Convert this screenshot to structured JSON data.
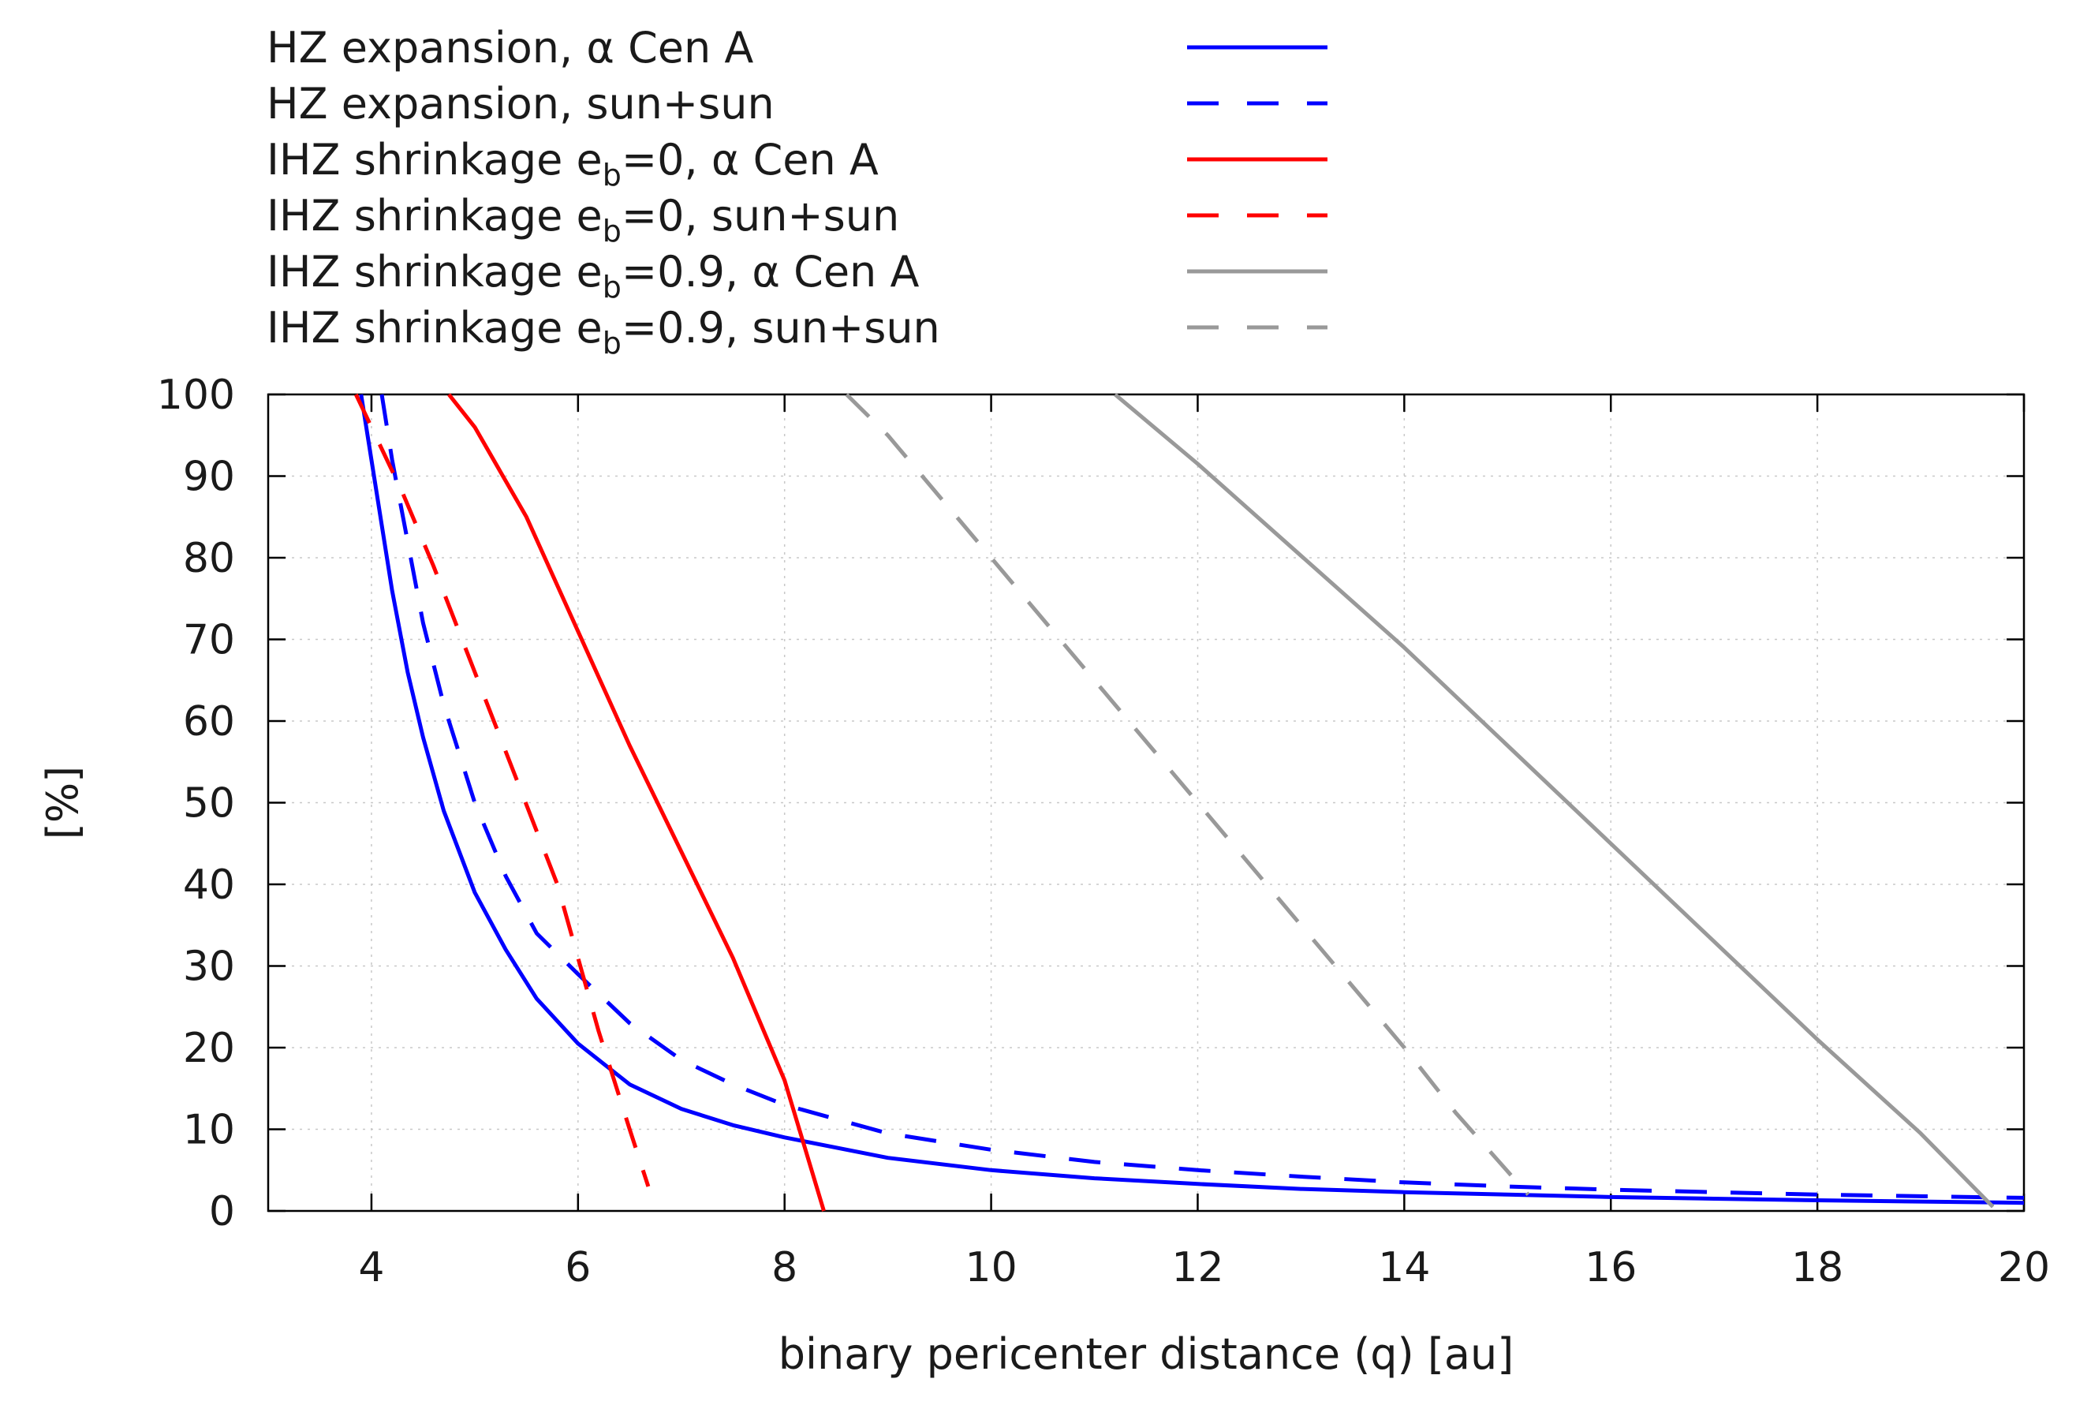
{
  "chart_data": {
    "type": "line",
    "title": "",
    "xlabel": "binary pericenter distance (q) [au]",
    "ylabel": "[%]",
    "xlim": [
      3,
      20
    ],
    "ylim": [
      0,
      100
    ],
    "xticks": [
      4,
      6,
      8,
      10,
      12,
      14,
      16,
      18,
      20
    ],
    "yticks": [
      0,
      10,
      20,
      30,
      40,
      50,
      60,
      70,
      80,
      90,
      100
    ],
    "grid": true,
    "legend_position": "top-left, above plot area",
    "series": [
      {
        "name": "HZ expansion, α Cen A",
        "legend_parts": [
          "HZ expansion, α Cen A"
        ],
        "color": "#0000ff",
        "dash": "solid",
        "x": [
          3.9,
          4.0,
          4.1,
          4.2,
          4.35,
          4.5,
          4.7,
          5.0,
          5.3,
          5.6,
          6.0,
          6.5,
          7.0,
          7.5,
          8.0,
          9.0,
          10.0,
          11.0,
          12.0,
          13.0,
          14.0,
          15.0,
          16.0,
          17.0,
          18.0,
          19.0,
          20.0
        ],
        "y": [
          100,
          92,
          84,
          76,
          66,
          58,
          49,
          39,
          32,
          26,
          20.5,
          15.5,
          12.5,
          10.5,
          9,
          6.5,
          5,
          4,
          3.3,
          2.7,
          2.3,
          2.0,
          1.7,
          1.5,
          1.3,
          1.15,
          1.0
        ]
      },
      {
        "name": "HZ expansion, sun+sun",
        "legend_parts": [
          "HZ expansion, sun+sun"
        ],
        "color": "#0000ff",
        "dash": "dashed",
        "x": [
          4.1,
          4.2,
          4.35,
          4.5,
          4.7,
          5.0,
          5.3,
          5.6,
          6.0,
          6.5,
          7.0,
          7.5,
          8.0,
          9.0,
          10.0,
          11.0,
          12.0,
          13.0,
          14.0,
          15.0,
          16.0,
          17.0,
          18.0,
          19.0,
          20.0
        ],
        "y": [
          100,
          92,
          82,
          72,
          62,
          50,
          41,
          34,
          29,
          23,
          18.5,
          15.5,
          13,
          9.5,
          7.5,
          6,
          5,
          4.2,
          3.5,
          3.0,
          2.6,
          2.3,
          2.0,
          1.8,
          1.6
        ]
      },
      {
        "name": "IHZ shrinkage e_b=0, α Cen A",
        "legend_parts": [
          "IHZ shrinkage e",
          "b",
          "=0, α Cen A"
        ],
        "color": "#ff0000",
        "dash": "solid",
        "x": [
          4.75,
          5.0,
          5.5,
          6.0,
          6.5,
          7.0,
          7.5,
          8.0,
          8.38
        ],
        "y": [
          100,
          96,
          85,
          71,
          57,
          44,
          31,
          16,
          0
        ]
      },
      {
        "name": "IHZ shrinkage e_b=0, sun+sun",
        "legend_parts": [
          "IHZ shrinkage e",
          "b",
          "=0, sun+sun"
        ],
        "color": "#ff0000",
        "dash": "dashed",
        "x": [
          3.85,
          4.0,
          4.3,
          4.6,
          5.0,
          5.4,
          5.8,
          6.2,
          6.5,
          6.68
        ],
        "y": [
          100,
          96,
          88,
          79,
          66,
          53,
          40,
          22,
          10,
          3
        ]
      },
      {
        "name": "IHZ shrinkage e_b=0.9, α Cen A",
        "legend_parts": [
          "IHZ shrinkage e",
          "b",
          "=0.9, α Cen A"
        ],
        "color": "#999999",
        "dash": "solid",
        "x": [
          11.2,
          12.0,
          14.0,
          16.0,
          18.0,
          19.0,
          19.7
        ],
        "y": [
          100,
          91.5,
          69,
          45,
          21,
          9.5,
          0.5
        ]
      },
      {
        "name": "IHZ shrinkage e_b=0.9, sun+sun",
        "legend_parts": [
          "IHZ shrinkage e",
          "b",
          "=0.9, sun+sun"
        ],
        "color": "#999999",
        "dash": "dashed",
        "x": [
          8.6,
          9.0,
          10.0,
          11.0,
          12.0,
          13.0,
          14.0,
          14.5,
          15.2
        ],
        "y": [
          100,
          95,
          80,
          65,
          50,
          35,
          20,
          12,
          2
        ]
      }
    ]
  }
}
